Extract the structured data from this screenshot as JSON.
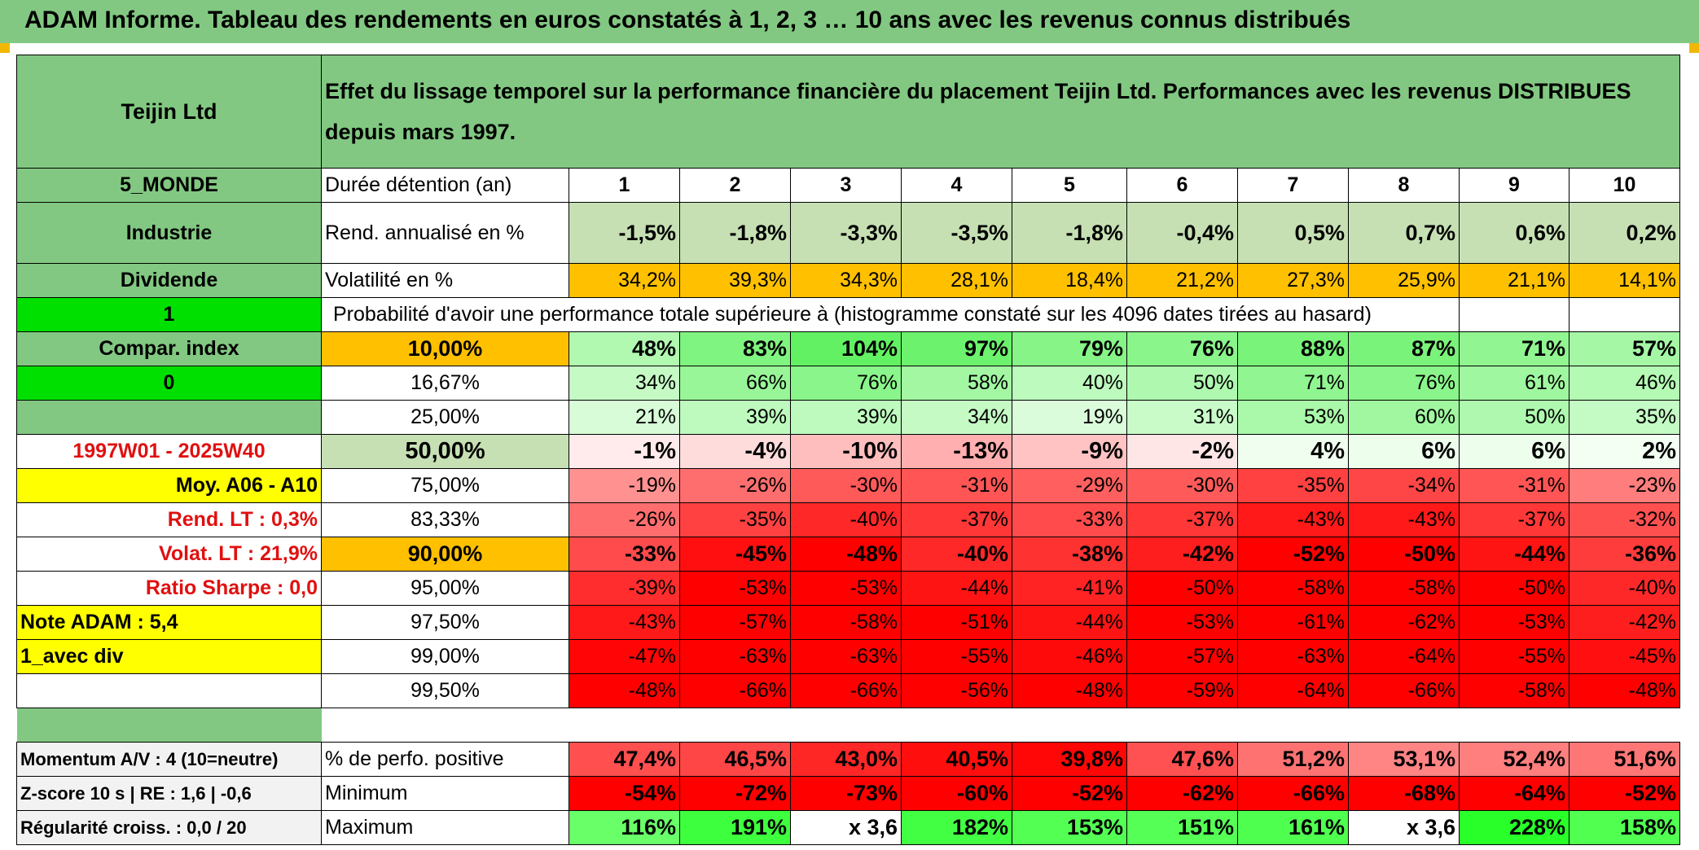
{
  "title": "ADAM Informe. Tableau des rendements en euros constatés à 1, 2, 3 … 10 ans avec les revenus connus distribués",
  "header": {
    "name": "Teijin Ltd",
    "description": "Effet du lissage temporel sur la performance financière du placement Teijin Ltd. Performances avec les revenus DISTRIBUES depuis mars 1997."
  },
  "side": {
    "region": "5_MONDE",
    "sector": "Industrie",
    "dividend": "Dividende",
    "value1": "1",
    "compar": "Compar. index",
    "value0": "0",
    "period": "1997W01 - 2025W40",
    "moy": "Moy. A06 - A10",
    "rend_lt": "Rend. LT :   0,3%",
    "volat_lt": "Volat. LT :   21,9%",
    "sharpe": "Ratio Sharpe :    0,0",
    "note": "Note ADAM : 5,4",
    "avec_div": "1_avec div",
    "momentum": "Momentum A/V : 4 (10=neutre)",
    "zscore": "Z-score 10 s | RE : 1,6 | -0,6",
    "regularite": "Régularité croiss. : 0,0 / 20"
  },
  "labels": {
    "duree": "Durée détention (an)",
    "rend": "Rend. annualisé en %",
    "volat": "Volatilité en %",
    "proba": "Probabilité d'avoir une performance totale supérieure à (histogramme constaté sur les 4096 dates tirées au hasard)",
    "perfo_pos": "% de perfo. positive",
    "minimum": "Minimum",
    "maximum": "Maximum"
  },
  "years": [
    "1",
    "2",
    "3",
    "4",
    "5",
    "6",
    "7",
    "8",
    "9",
    "10"
  ],
  "rend": [
    "-1,5%",
    "-1,8%",
    "-3,3%",
    "-3,5%",
    "-1,8%",
    "-0,4%",
    "0,5%",
    "0,7%",
    "0,6%",
    "0,2%"
  ],
  "volat": [
    "34,2%",
    "39,3%",
    "34,3%",
    "28,1%",
    "18,4%",
    "21,2%",
    "27,3%",
    "25,9%",
    "21,1%",
    "14,1%"
  ],
  "percentiles": [
    {
      "label": "10,00%",
      "cells": [
        "48%",
        "83%",
        "104%",
        "97%",
        "79%",
        "76%",
        "88%",
        "87%",
        "71%",
        "57%"
      ]
    },
    {
      "label": "16,67%",
      "cells": [
        "34%",
        "66%",
        "76%",
        "58%",
        "40%",
        "50%",
        "71%",
        "76%",
        "61%",
        "46%"
      ]
    },
    {
      "label": "25,00%",
      "cells": [
        "21%",
        "39%",
        "39%",
        "34%",
        "19%",
        "31%",
        "53%",
        "60%",
        "50%",
        "35%"
      ]
    },
    {
      "label": "50,00%",
      "cells": [
        "-1%",
        "-4%",
        "-10%",
        "-13%",
        "-9%",
        "-2%",
        "4%",
        "6%",
        "6%",
        "2%"
      ]
    },
    {
      "label": "75,00%",
      "cells": [
        "-19%",
        "-26%",
        "-30%",
        "-31%",
        "-29%",
        "-30%",
        "-35%",
        "-34%",
        "-31%",
        "-23%"
      ]
    },
    {
      "label": "83,33%",
      "cells": [
        "-26%",
        "-35%",
        "-40%",
        "-37%",
        "-33%",
        "-37%",
        "-43%",
        "-43%",
        "-37%",
        "-32%"
      ]
    },
    {
      "label": "90,00%",
      "cells": [
        "-33%",
        "-45%",
        "-48%",
        "-40%",
        "-38%",
        "-42%",
        "-52%",
        "-50%",
        "-44%",
        "-36%"
      ]
    },
    {
      "label": "95,00%",
      "cells": [
        "-39%",
        "-53%",
        "-53%",
        "-44%",
        "-41%",
        "-50%",
        "-58%",
        "-58%",
        "-50%",
        "-40%"
      ]
    },
    {
      "label": "97,50%",
      "cells": [
        "-43%",
        "-57%",
        "-58%",
        "-51%",
        "-44%",
        "-53%",
        "-61%",
        "-62%",
        "-53%",
        "-42%"
      ]
    },
    {
      "label": "99,00%",
      "cells": [
        "-47%",
        "-63%",
        "-63%",
        "-55%",
        "-46%",
        "-57%",
        "-63%",
        "-64%",
        "-55%",
        "-45%"
      ]
    },
    {
      "label": "99,50%",
      "cells": [
        "-48%",
        "-66%",
        "-66%",
        "-56%",
        "-48%",
        "-59%",
        "-64%",
        "-66%",
        "-58%",
        "-48%"
      ]
    }
  ],
  "perfo_pos": [
    "47,4%",
    "46,5%",
    "43,0%",
    "40,5%",
    "39,8%",
    "47,6%",
    "51,2%",
    "53,1%",
    "52,4%",
    "51,6%"
  ],
  "minimum": [
    "-54%",
    "-72%",
    "-73%",
    "-60%",
    "-52%",
    "-62%",
    "-66%",
    "-68%",
    "-64%",
    "-52%"
  ],
  "maximum": [
    "116%",
    "191%",
    "x 3,6",
    "182%",
    "153%",
    "151%",
    "161%",
    "x 3,6",
    "228%",
    "158%"
  ],
  "colors": {
    "header_green": "#82c882",
    "light_green": "#c6e0b4",
    "orange": "#ffc000",
    "yellow": "#ffff00",
    "bright_green": "#00e000",
    "red": "#ff0000",
    "accent_red_text": "#e01010"
  }
}
